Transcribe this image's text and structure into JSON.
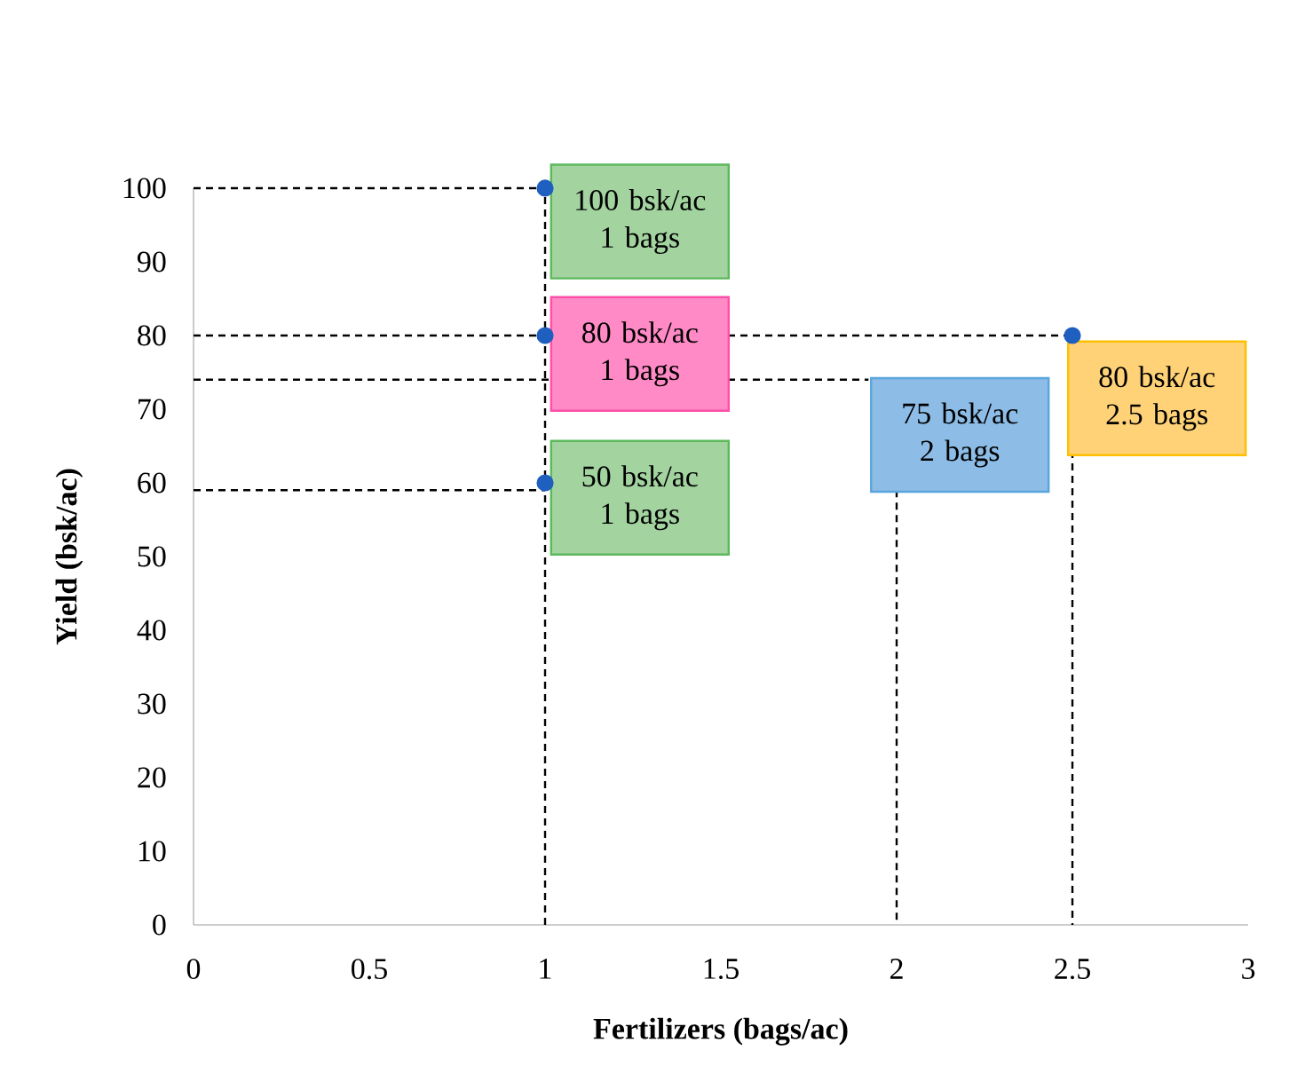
{
  "chart_data": {
    "type": "scatter",
    "xlabel": "Fertilizers (bags/ac)",
    "ylabel": "Yield (bsk/ac)",
    "xlim": [
      0,
      3
    ],
    "xticks": [
      0,
      0.5,
      1,
      1.5,
      2,
      2.5,
      3
    ],
    "ylim": [
      0,
      100
    ],
    "yticks": [
      0,
      10,
      20,
      30,
      40,
      50,
      60,
      70,
      80,
      90,
      100
    ],
    "series": [
      {
        "marker": "circle",
        "color": "#1f5fbf",
        "x": [
          1,
          1,
          1,
          2.5
        ],
        "values": [
          100,
          80,
          60,
          80
        ]
      },
      {
        "type": "line",
        "line_style": "dashed",
        "marker": "none",
        "color": "#000000",
        "x": [
          0,
          1,
          1
        ],
        "values": [
          100,
          100,
          0
        ]
      },
      {
        "type": "line",
        "line_style": "dashed",
        "marker": "none",
        "color": "#000000",
        "x": [
          0,
          2.5,
          2.5
        ],
        "values": [
          80,
          80,
          0
        ]
      },
      {
        "type": "line",
        "line_style": "dashed",
        "marker": "none",
        "color": "#000000",
        "x": [
          0,
          1.92
        ],
        "values": [
          74,
          74
        ]
      },
      {
        "type": "line",
        "line_style": "dashed",
        "marker": "none",
        "color": "#000000",
        "x": [
          0,
          1
        ],
        "values": [
          59,
          59
        ]
      },
      {
        "type": "line",
        "line_style": "dashed",
        "marker": "none",
        "color": "#000000",
        "x": [
          2,
          2
        ],
        "values": [
          59,
          0
        ]
      }
    ],
    "annotations": [
      "100 bsk/ac 1 bags",
      "80 bsk/ac 1 bags",
      "50 bsk/ac 1 bags",
      "75 bsk/ac 2 bags",
      "80 bsk/ac 2.5 bags"
    ]
  }
}
